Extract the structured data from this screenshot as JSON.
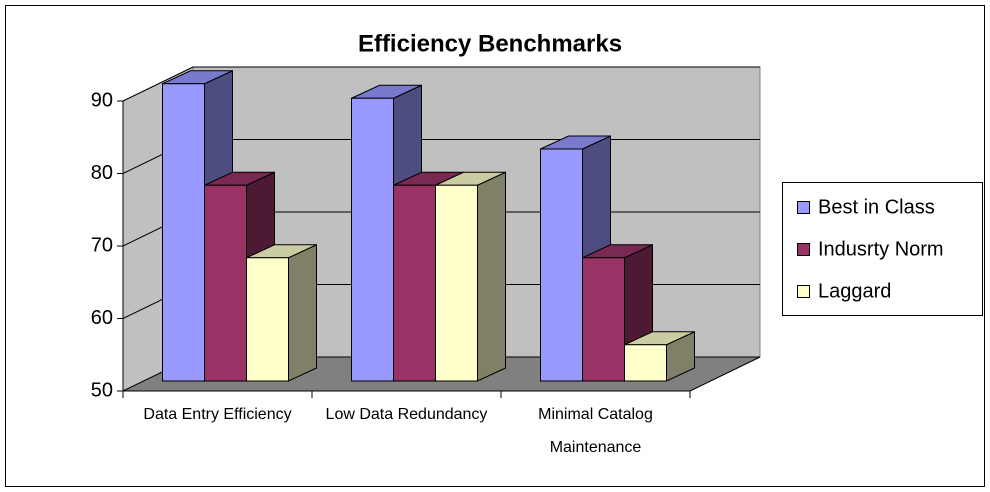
{
  "chart_data": {
    "type": "bar3d",
    "title": "Efficiency Benchmarks",
    "categories": [
      "Data Entry Efficiency",
      "Low Data Redundancy",
      "Minimal Catalog Maintenance"
    ],
    "series": [
      {
        "name": "Best in Class",
        "color": "#9999ff",
        "values": [
          91,
          89,
          82
        ]
      },
      {
        "name": "Indusrty Norm",
        "color": "#993366",
        "values": [
          77,
          77,
          67
        ]
      },
      {
        "name": "Laggard",
        "color": "#ffffcc",
        "values": [
          67,
          77,
          55
        ]
      }
    ],
    "ylim": [
      50,
      90
    ],
    "yticks": [
      50,
      60,
      70,
      80,
      90
    ],
    "grid": true,
    "legend": "right"
  }
}
